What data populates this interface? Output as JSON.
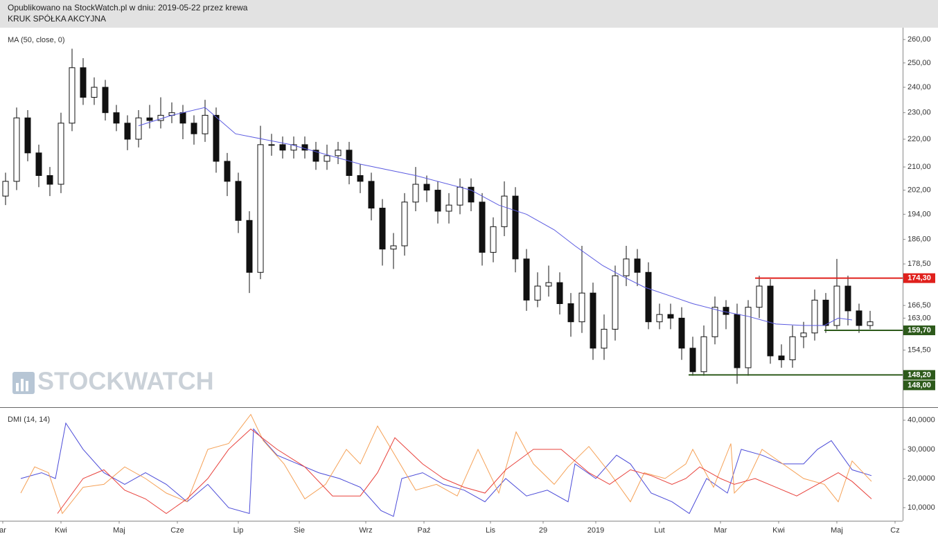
{
  "header": {
    "published": "Opublikowano na StockWatch.pl w dniu: 2019-05-22 przez krewa",
    "company": "KRUK SPÓŁKA AKCYJNA",
    "watermark": "STOCKWATCH"
  },
  "chart_data": [
    {
      "type": "candlestick",
      "log": true,
      "xlim": [
        0,
        325.75
      ],
      "ylim": [
        140.4,
        265.2
      ],
      "yticks": [
        {
          "value": 260,
          "label": "260,00"
        },
        {
          "value": 250,
          "label": "250,00"
        },
        {
          "value": 240,
          "label": "240,00"
        },
        {
          "value": 230,
          "label": "230,00"
        },
        {
          "value": 220,
          "label": "220,00"
        },
        {
          "value": 210,
          "label": "210,00"
        },
        {
          "value": 202,
          "label": "202,00"
        },
        {
          "value": 194,
          "label": "194,00"
        },
        {
          "value": 186,
          "label": "186,00"
        },
        {
          "value": 178.5,
          "label": "178,50"
        },
        {
          "value": 166.5,
          "label": "166,50"
        },
        {
          "value": 163,
          "label": "163,00"
        },
        {
          "value": 154.5,
          "label": "154,50"
        }
      ],
      "x": [
        2,
        6,
        10,
        14,
        18,
        22,
        26,
        30,
        34,
        38,
        42,
        46,
        50,
        54,
        58,
        62,
        66,
        70,
        74,
        78,
        82,
        86,
        90,
        94,
        98,
        102,
        106,
        110,
        114,
        118,
        122,
        126,
        130,
        134,
        138,
        142,
        146,
        150,
        154,
        158,
        162,
        166,
        170,
        174,
        178,
        182,
        186,
        190,
        194,
        198,
        202,
        206,
        210,
        214,
        218,
        222,
        226,
        230,
        234,
        238,
        242,
        246,
        250,
        254,
        258,
        262,
        266,
        270,
        274,
        278,
        282,
        286,
        290,
        294,
        298,
        302,
        306,
        310,
        314
      ],
      "open": [
        200,
        205,
        228,
        215,
        207,
        204,
        226,
        248,
        236,
        240,
        230,
        226,
        220,
        228,
        227,
        229,
        230,
        226,
        222,
        229,
        212,
        205,
        192,
        176,
        218,
        218,
        216,
        218,
        216,
        212,
        214,
        216,
        207,
        205,
        196,
        183,
        184,
        198,
        204,
        202,
        195,
        197,
        203,
        198,
        182,
        190,
        200,
        180,
        168,
        172,
        173,
        167,
        162,
        170,
        155,
        160,
        175,
        180,
        176,
        162,
        164,
        163,
        155,
        149,
        158,
        166,
        164,
        150,
        166,
        172,
        153,
        152,
        158,
        159,
        168,
        161,
        172,
        165,
        161
      ],
      "high": [
        208,
        232,
        231,
        218,
        210,
        230,
        256,
        252,
        244,
        243,
        233,
        229,
        231,
        233,
        236,
        234,
        233,
        229,
        235,
        232,
        215,
        208,
        195,
        225,
        222,
        221,
        221,
        221,
        219,
        218,
        219,
        219,
        211,
        208,
        199,
        188,
        201,
        210,
        207,
        205,
        201,
        206,
        206,
        201,
        193,
        205,
        203,
        183,
        176,
        178,
        176,
        170,
        184,
        173,
        164,
        178,
        184,
        183,
        179,
        167,
        167,
        166,
        158,
        161,
        169,
        168,
        167,
        168,
        175,
        174,
        156,
        161,
        162,
        171,
        170,
        180,
        175,
        167,
        165
      ],
      "low": [
        197,
        202,
        212,
        203,
        200,
        201,
        223,
        233,
        233,
        227,
        223,
        216,
        217,
        224,
        224,
        226,
        220,
        218,
        219,
        208,
        200,
        188,
        170,
        174,
        214,
        213,
        213,
        213,
        209,
        209,
        211,
        204,
        201,
        192,
        178,
        177,
        181,
        195,
        198,
        191,
        191,
        194,
        195,
        178,
        179,
        187,
        176,
        165,
        166,
        169,
        164,
        158,
        159,
        152,
        152,
        157,
        172,
        172,
        160,
        160,
        160,
        152,
        148,
        148,
        156,
        160,
        146,
        148,
        163,
        151,
        150,
        150,
        155,
        157,
        159,
        160,
        161,
        159,
        160
      ],
      "close": [
        205,
        228,
        215,
        207,
        204,
        226,
        248,
        236,
        240,
        230,
        226,
        220,
        228,
        227,
        229,
        230,
        226,
        222,
        229,
        212,
        205,
        192,
        176,
        218,
        218,
        216,
        218,
        216,
        212,
        214,
        216,
        207,
        205,
        196,
        183,
        184,
        198,
        204,
        202,
        195,
        197,
        203,
        198,
        182,
        190,
        200,
        180,
        168,
        172,
        173,
        167,
        162,
        170,
        155,
        160,
        175,
        180,
        176,
        162,
        164,
        163,
        155,
        149,
        158,
        166,
        164,
        150,
        166,
        172,
        153,
        152,
        158,
        159,
        168,
        161,
        172,
        165,
        161,
        162
      ],
      "series": [
        {
          "name": "MA (50, close, 0)",
          "color": "#5a5ae0",
          "x": [
            50,
            62,
            74,
            85,
            105,
            130,
            150,
            170,
            180,
            190,
            200,
            207.5,
            217.5,
            225,
            232.5,
            242.5,
            250,
            260,
            270,
            280,
            290,
            297.5,
            302.5,
            307.5
          ],
          "values": [
            225,
            229,
            232,
            222,
            218,
            211,
            207,
            202,
            197,
            194,
            189,
            184,
            178,
            174.7,
            171.7,
            169,
            167,
            165,
            163.5,
            161.4,
            161,
            161,
            163,
            162.5
          ]
        }
      ],
      "levels": [
        {
          "value": 174.3,
          "label": "174,30",
          "color": "#e0201c",
          "start": 272.5
        },
        {
          "value": 159.7,
          "label": "159,70",
          "color": "#2d5a1b",
          "start": 297.5
        },
        {
          "value": 148.2,
          "label": "148,20",
          "color": "#2d5a1b",
          "start": 248.5
        },
        {
          "value": 148.0,
          "label": "148,00",
          "color": "#2d5a1b"
        }
      ]
    },
    {
      "type": "line",
      "title": "DMI (14, 14)",
      "xlim": [
        0,
        325.75
      ],
      "ylim": [
        5.5,
        44
      ],
      "yticks": [
        {
          "value": 40,
          "label": "40,0000"
        },
        {
          "value": 30,
          "label": "30,0000"
        },
        {
          "value": 20,
          "label": "20,0000"
        },
        {
          "value": 10,
          "label": "10,0000"
        }
      ],
      "xticks": [
        {
          "value": 1,
          "label": "ar"
        },
        {
          "value": 22,
          "label": "Kwi"
        },
        {
          "value": 43,
          "label": "Maj"
        },
        {
          "value": 64,
          "label": "Cze"
        },
        {
          "value": 86,
          "label": "Lip"
        },
        {
          "value": 108,
          "label": "Sie"
        },
        {
          "value": 132,
          "label": "Wrz"
        },
        {
          "value": 153,
          "label": "Paź"
        },
        {
          "value": 177,
          "label": "Lis"
        },
        {
          "value": 196,
          "label": "29"
        },
        {
          "value": 215,
          "label": "2019"
        },
        {
          "value": 238,
          "label": "Lut"
        },
        {
          "value": 260,
          "label": "Mar"
        },
        {
          "value": 281,
          "label": "Kwi"
        },
        {
          "value": 302,
          "label": "Maj"
        },
        {
          "value": 323,
          "label": "Cz"
        }
      ],
      "series": [
        {
          "color": "#4a4ad8",
          "x": [
            7.5,
            15,
            20,
            23.75,
            30,
            37.5,
            45,
            52.5,
            60,
            67.5,
            75,
            82.5,
            90,
            91.5,
            100,
            107.5,
            115,
            122.5,
            130,
            137.5,
            142,
            145,
            152.5,
            160,
            167.5,
            175,
            182.5,
            190,
            197.5,
            205,
            207.5,
            215,
            222.5,
            227.5,
            235,
            242.5,
            248.75,
            255,
            262.5,
            267.5,
            275,
            282.5,
            290,
            295,
            300,
            307.5,
            314.5
          ],
          "values": [
            20,
            22,
            20,
            39,
            30,
            22,
            18,
            22,
            18,
            12,
            18,
            10,
            8,
            37,
            28,
            25,
            22,
            20,
            17,
            9,
            7,
            20,
            22,
            18,
            16,
            12,
            20,
            14,
            16,
            12,
            25,
            20,
            28,
            25,
            15,
            12,
            8,
            20,
            15,
            30,
            28,
            25,
            25,
            30,
            33,
            23,
            21
          ]
        },
        {
          "color": "#f5a055",
          "x": [
            7.5,
            12.5,
            17.5,
            22.5,
            30,
            37.5,
            45,
            52.5,
            60,
            67.5,
            75,
            82.5,
            90.5,
            95,
            102.5,
            110,
            117.5,
            125,
            130,
            136.25,
            142.5,
            150,
            157.5,
            165,
            172.5,
            180,
            186.25,
            192.5,
            200,
            205,
            212.5,
            220,
            227.5,
            232.5,
            240,
            247.5,
            250,
            257.5,
            263.75,
            265,
            270,
            275,
            282.5,
            290,
            297.5,
            302.5,
            307.5,
            314.5
          ],
          "values": [
            15,
            24,
            22,
            8,
            17,
            18,
            24,
            20,
            15,
            12,
            30,
            32,
            42,
            33,
            25,
            13,
            18,
            30,
            25,
            38,
            28,
            16,
            18,
            14,
            30,
            15,
            36,
            25,
            18,
            24,
            31,
            22,
            12,
            22,
            20,
            25,
            30,
            17,
            32,
            15,
            20,
            30,
            25,
            20,
            18,
            12,
            26,
            19
          ]
        },
        {
          "color": "#e8403a",
          "x": [
            20.75,
            30,
            37.5,
            45,
            52.5,
            60,
            67.5,
            75,
            82.5,
            90.5,
            100,
            110,
            120,
            130,
            136.25,
            142.5,
            152.5,
            160,
            167.5,
            175,
            182.5,
            192.5,
            202.5,
            212.5,
            220,
            227.5,
            235,
            242.5,
            247.5,
            252.5,
            260,
            265,
            272.5,
            280,
            287.5,
            295,
            302.5,
            307.5,
            314.5
          ],
          "values": [
            8,
            20,
            23,
            16,
            13,
            8,
            13,
            20,
            30,
            37,
            30,
            24,
            14,
            14,
            22,
            34,
            25,
            20,
            17,
            15,
            23,
            30,
            30,
            22,
            18,
            23,
            21,
            18,
            20,
            24,
            20,
            18,
            20,
            17,
            14,
            18,
            22,
            19,
            13
          ]
        }
      ]
    }
  ]
}
